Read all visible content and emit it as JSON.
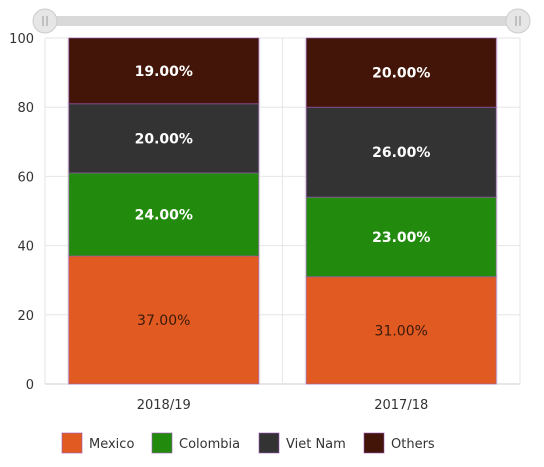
{
  "chart_data": {
    "type": "bar",
    "stacked": true,
    "categories": [
      "2018/19",
      "2017/18"
    ],
    "series": [
      {
        "name": "Mexico",
        "values": [
          37,
          31
        ],
        "labels": [
          "37.00%",
          "31.00%"
        ],
        "color": "#e05a22",
        "label_color": "#3a1a0a"
      },
      {
        "name": "Colombia",
        "values": [
          24,
          23
        ],
        "labels": [
          "24.00%",
          "23.00%"
        ],
        "color": "#228b0e",
        "label_color": "#ffffff"
      },
      {
        "name": "Viet Nam",
        "values": [
          20,
          26
        ],
        "labels": [
          "20.00%",
          "26.00%"
        ],
        "color": "#333333",
        "label_color": "#ffffff"
      },
      {
        "name": "Others",
        "values": [
          19,
          20
        ],
        "labels": [
          "19.00%",
          "20.00%"
        ],
        "color": "#421508",
        "label_color": "#ffffff"
      }
    ],
    "ylim": [
      0,
      100
    ],
    "yticks": [
      "0",
      "20",
      "40",
      "60",
      "80",
      "100"
    ],
    "grid": true,
    "legend_position": "bottom",
    "has_range_slider": true
  }
}
